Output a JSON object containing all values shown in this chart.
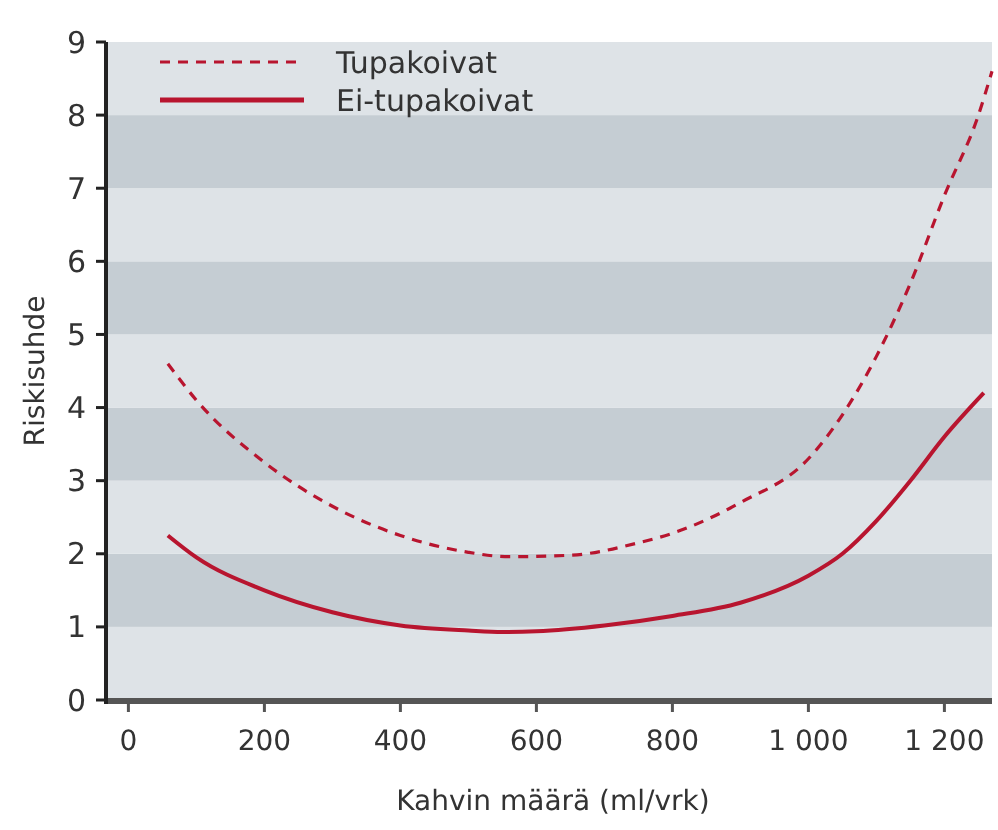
{
  "chart_data": {
    "type": "line",
    "xlabel": "Kahvin määrä (ml/vrk)",
    "ylabel": "Riskisuhde",
    "xlim": [
      -30,
      1270
    ],
    "ylim": [
      0,
      9
    ],
    "xticks": [
      0,
      200,
      400,
      600,
      800,
      {
        "value": 1000,
        "label": "1 000"
      },
      {
        "value": 1200,
        "label": "1 200"
      }
    ],
    "yticks": [
      0,
      1,
      2,
      3,
      4,
      5,
      6,
      7,
      8,
      9
    ],
    "legend": "top left",
    "series": [
      {
        "name": "Tupakoivat",
        "color": "#b8152f",
        "line_style": "dashed",
        "x": [
          58,
          100,
          200,
          300,
          400,
          500,
          560,
          650,
          750,
          800,
          900,
          1000,
          1100,
          1150,
          1200,
          1250,
          1270
        ],
        "values": [
          4.6,
          4.1,
          3.25,
          2.65,
          2.25,
          2.02,
          1.96,
          1.98,
          2.15,
          2.28,
          2.7,
          3.3,
          4.7,
          5.7,
          6.9,
          8.0,
          8.6
        ]
      },
      {
        "name": "Ei-tupakoivat",
        "color": "#b8152f",
        "line_style": "solid",
        "x": [
          58,
          100,
          200,
          300,
          400,
          500,
          550,
          600,
          700,
          800,
          900,
          1000,
          1050,
          1100,
          1150,
          1200,
          1258
        ],
        "values": [
          2.25,
          1.95,
          1.5,
          1.2,
          1.02,
          0.95,
          0.93,
          0.94,
          1.02,
          1.15,
          1.33,
          1.7,
          2.0,
          2.45,
          3.0,
          3.6,
          4.2
        ]
      }
    ]
  }
}
